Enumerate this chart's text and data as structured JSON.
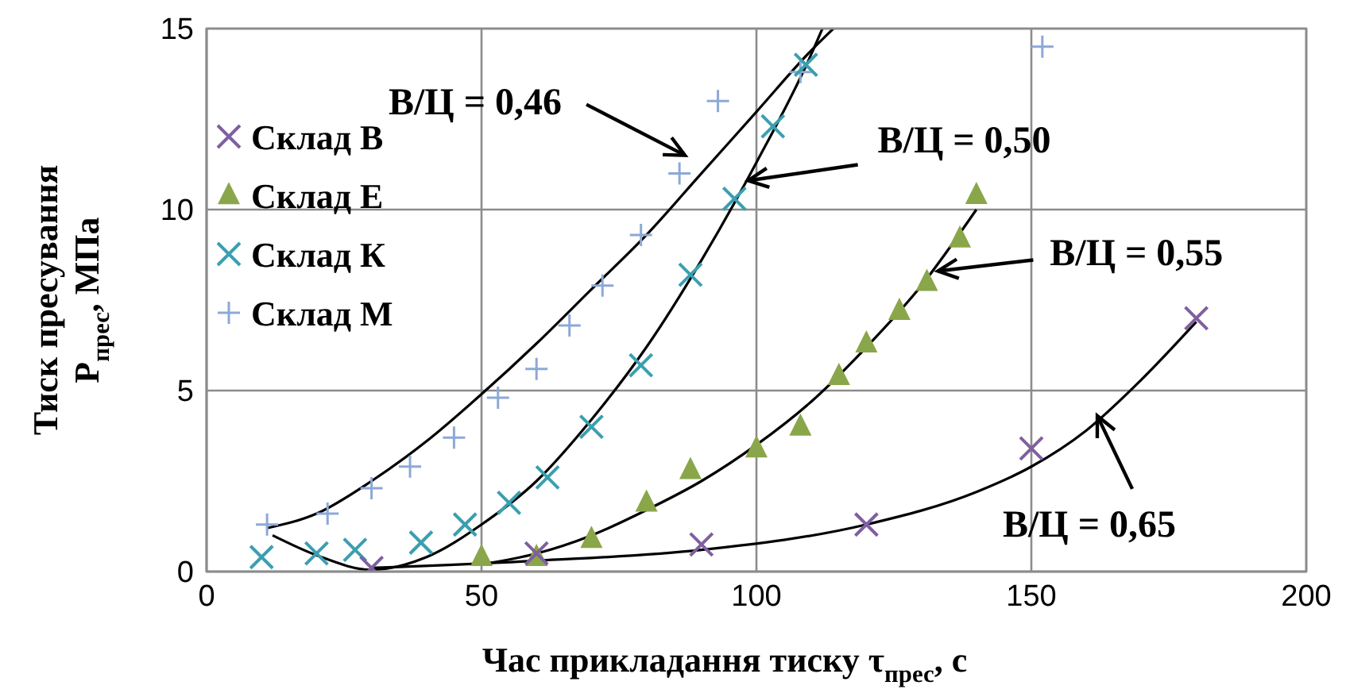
{
  "chart_data": {
    "type": "scatter",
    "xlabel": "Час прикладання тиску τ$_{прес}$, с",
    "ylabel": "Тиск пресування P$_{прес}$, МПа",
    "xlim": [
      0,
      200
    ],
    "xticks": [
      0,
      50,
      100,
      150,
      200
    ],
    "ylim": [
      0,
      15
    ],
    "yticks": [
      0,
      5,
      10,
      15
    ],
    "grid": true,
    "legend": "top left",
    "series": [
      {
        "name": "Склад В",
        "color": "#7f5fa0",
        "marker": "cross",
        "x": [
          30,
          60,
          90,
          120,
          150,
          180
        ],
        "values": [
          0.1,
          0.5,
          0.75,
          1.3,
          3.4,
          7.0
        ]
      },
      {
        "name": "Склад Е",
        "color": "#8aa64a",
        "marker": "triangle",
        "x": [
          50,
          60,
          70,
          80,
          88,
          100,
          108,
          115,
          120,
          126,
          131,
          137,
          140
        ],
        "values": [
          0.4,
          0.4,
          0.9,
          1.9,
          2.8,
          3.4,
          4.0,
          5.4,
          6.3,
          7.2,
          8.0,
          9.2,
          10.4
        ]
      },
      {
        "name": "Склад К",
        "color": "#3a9fb0",
        "marker": "cross",
        "x": [
          10,
          20,
          27,
          39,
          47,
          55,
          62,
          70,
          79,
          88,
          96,
          103,
          109
        ],
        "values": [
          0.4,
          0.5,
          0.6,
          0.8,
          1.3,
          1.9,
          2.6,
          4.0,
          5.7,
          8.2,
          10.3,
          12.3,
          14.0
        ]
      },
      {
        "name": "Склад М",
        "color": "#8ca9d6",
        "marker": "plus",
        "x": [
          11,
          22,
          30,
          37,
          45,
          53,
          60,
          66,
          72,
          79,
          86,
          93,
          108,
          152
        ],
        "values": [
          1.3,
          1.6,
          2.3,
          2.9,
          3.7,
          4.8,
          5.6,
          6.8,
          7.9,
          9.3,
          11.0,
          13.0,
          13.8,
          14.5
        ]
      },
      {
        "type": "line",
        "color": "#000000",
        "marker": "none",
        "x": [
          11,
          20,
          30,
          40,
          50,
          60,
          70,
          80,
          90,
          100,
          110,
          114
        ],
        "values": [
          1.2,
          1.6,
          2.5,
          3.6,
          4.9,
          6.3,
          7.8,
          9.3,
          11.0,
          12.7,
          14.4,
          15.0
        ]
      },
      {
        "type": "line",
        "color": "#000000",
        "marker": "none",
        "x": [
          12,
          20,
          30,
          40,
          50,
          60,
          70,
          80,
          90,
          100,
          110,
          112
        ],
        "values": [
          1.0,
          0.45,
          0.05,
          0.4,
          1.3,
          2.5,
          4.2,
          6.2,
          8.6,
          11.3,
          14.3,
          15.0
        ]
      },
      {
        "type": "line",
        "color": "#000000",
        "marker": "none",
        "x": [
          50,
          60,
          70,
          80,
          90,
          100,
          110,
          120,
          130,
          140
        ],
        "values": [
          0.2,
          0.5,
          1.0,
          1.7,
          2.5,
          3.5,
          4.7,
          6.2,
          7.9,
          10.0
        ]
      },
      {
        "type": "line",
        "color": "#000000",
        "marker": "none",
        "x": [
          30,
          60,
          90,
          120,
          140,
          150,
          160,
          170,
          180
        ],
        "values": [
          0.1,
          0.3,
          0.6,
          1.3,
          2.2,
          2.9,
          3.9,
          5.3,
          6.9
        ]
      }
    ],
    "annotations": [
      {
        "text": "В/Ц = 0,46",
        "x": 87,
        "y": 11.5
      },
      {
        "text": "В/Ц = 0,50",
        "x": 98.5,
        "y": 10.8
      },
      {
        "text": "В/Ц = 0,55",
        "x": 133,
        "y": 8.3
      },
      {
        "text": "В/Ц = 0,65",
        "x": 162,
        "y": 4.3
      }
    ]
  }
}
